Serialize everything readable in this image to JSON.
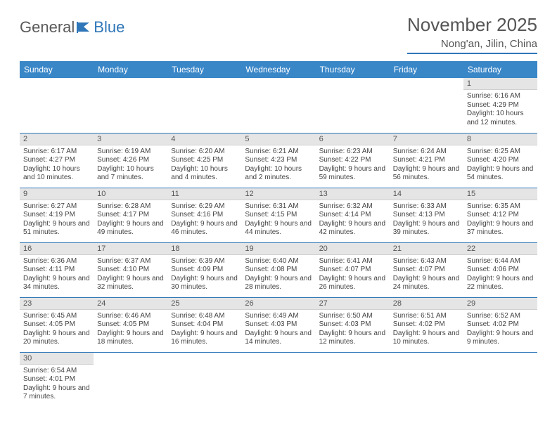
{
  "logo": {
    "word1": "General",
    "word2": "Blue"
  },
  "title": "November 2025",
  "location": "Nong'an, Jilin, China",
  "day_headers": [
    "Sunday",
    "Monday",
    "Tuesday",
    "Wednesday",
    "Thursday",
    "Friday",
    "Saturday"
  ],
  "colors": {
    "header_bg": "#3a87c8",
    "accent_line": "#2f77b8",
    "daynum_bg": "#e5e5e5",
    "text": "#444444"
  },
  "weeks": [
    [
      null,
      null,
      null,
      null,
      null,
      null,
      {
        "n": "1",
        "sr": "Sunrise: 6:16 AM",
        "ss": "Sunset: 4:29 PM",
        "dl": "Daylight: 10 hours and 12 minutes."
      }
    ],
    [
      {
        "n": "2",
        "sr": "Sunrise: 6:17 AM",
        "ss": "Sunset: 4:27 PM",
        "dl": "Daylight: 10 hours and 10 minutes."
      },
      {
        "n": "3",
        "sr": "Sunrise: 6:19 AM",
        "ss": "Sunset: 4:26 PM",
        "dl": "Daylight: 10 hours and 7 minutes."
      },
      {
        "n": "4",
        "sr": "Sunrise: 6:20 AM",
        "ss": "Sunset: 4:25 PM",
        "dl": "Daylight: 10 hours and 4 minutes."
      },
      {
        "n": "5",
        "sr": "Sunrise: 6:21 AM",
        "ss": "Sunset: 4:23 PM",
        "dl": "Daylight: 10 hours and 2 minutes."
      },
      {
        "n": "6",
        "sr": "Sunrise: 6:23 AM",
        "ss": "Sunset: 4:22 PM",
        "dl": "Daylight: 9 hours and 59 minutes."
      },
      {
        "n": "7",
        "sr": "Sunrise: 6:24 AM",
        "ss": "Sunset: 4:21 PM",
        "dl": "Daylight: 9 hours and 56 minutes."
      },
      {
        "n": "8",
        "sr": "Sunrise: 6:25 AM",
        "ss": "Sunset: 4:20 PM",
        "dl": "Daylight: 9 hours and 54 minutes."
      }
    ],
    [
      {
        "n": "9",
        "sr": "Sunrise: 6:27 AM",
        "ss": "Sunset: 4:19 PM",
        "dl": "Daylight: 9 hours and 51 minutes."
      },
      {
        "n": "10",
        "sr": "Sunrise: 6:28 AM",
        "ss": "Sunset: 4:17 PM",
        "dl": "Daylight: 9 hours and 49 minutes."
      },
      {
        "n": "11",
        "sr": "Sunrise: 6:29 AM",
        "ss": "Sunset: 4:16 PM",
        "dl": "Daylight: 9 hours and 46 minutes."
      },
      {
        "n": "12",
        "sr": "Sunrise: 6:31 AM",
        "ss": "Sunset: 4:15 PM",
        "dl": "Daylight: 9 hours and 44 minutes."
      },
      {
        "n": "13",
        "sr": "Sunrise: 6:32 AM",
        "ss": "Sunset: 4:14 PM",
        "dl": "Daylight: 9 hours and 42 minutes."
      },
      {
        "n": "14",
        "sr": "Sunrise: 6:33 AM",
        "ss": "Sunset: 4:13 PM",
        "dl": "Daylight: 9 hours and 39 minutes."
      },
      {
        "n": "15",
        "sr": "Sunrise: 6:35 AM",
        "ss": "Sunset: 4:12 PM",
        "dl": "Daylight: 9 hours and 37 minutes."
      }
    ],
    [
      {
        "n": "16",
        "sr": "Sunrise: 6:36 AM",
        "ss": "Sunset: 4:11 PM",
        "dl": "Daylight: 9 hours and 34 minutes."
      },
      {
        "n": "17",
        "sr": "Sunrise: 6:37 AM",
        "ss": "Sunset: 4:10 PM",
        "dl": "Daylight: 9 hours and 32 minutes."
      },
      {
        "n": "18",
        "sr": "Sunrise: 6:39 AM",
        "ss": "Sunset: 4:09 PM",
        "dl": "Daylight: 9 hours and 30 minutes."
      },
      {
        "n": "19",
        "sr": "Sunrise: 6:40 AM",
        "ss": "Sunset: 4:08 PM",
        "dl": "Daylight: 9 hours and 28 minutes."
      },
      {
        "n": "20",
        "sr": "Sunrise: 6:41 AM",
        "ss": "Sunset: 4:07 PM",
        "dl": "Daylight: 9 hours and 26 minutes."
      },
      {
        "n": "21",
        "sr": "Sunrise: 6:43 AM",
        "ss": "Sunset: 4:07 PM",
        "dl": "Daylight: 9 hours and 24 minutes."
      },
      {
        "n": "22",
        "sr": "Sunrise: 6:44 AM",
        "ss": "Sunset: 4:06 PM",
        "dl": "Daylight: 9 hours and 22 minutes."
      }
    ],
    [
      {
        "n": "23",
        "sr": "Sunrise: 6:45 AM",
        "ss": "Sunset: 4:05 PM",
        "dl": "Daylight: 9 hours and 20 minutes."
      },
      {
        "n": "24",
        "sr": "Sunrise: 6:46 AM",
        "ss": "Sunset: 4:05 PM",
        "dl": "Daylight: 9 hours and 18 minutes."
      },
      {
        "n": "25",
        "sr": "Sunrise: 6:48 AM",
        "ss": "Sunset: 4:04 PM",
        "dl": "Daylight: 9 hours and 16 minutes."
      },
      {
        "n": "26",
        "sr": "Sunrise: 6:49 AM",
        "ss": "Sunset: 4:03 PM",
        "dl": "Daylight: 9 hours and 14 minutes."
      },
      {
        "n": "27",
        "sr": "Sunrise: 6:50 AM",
        "ss": "Sunset: 4:03 PM",
        "dl": "Daylight: 9 hours and 12 minutes."
      },
      {
        "n": "28",
        "sr": "Sunrise: 6:51 AM",
        "ss": "Sunset: 4:02 PM",
        "dl": "Daylight: 9 hours and 10 minutes."
      },
      {
        "n": "29",
        "sr": "Sunrise: 6:52 AM",
        "ss": "Sunset: 4:02 PM",
        "dl": "Daylight: 9 hours and 9 minutes."
      }
    ],
    [
      {
        "n": "30",
        "sr": "Sunrise: 6:54 AM",
        "ss": "Sunset: 4:01 PM",
        "dl": "Daylight: 9 hours and 7 minutes."
      },
      null,
      null,
      null,
      null,
      null,
      null
    ]
  ]
}
